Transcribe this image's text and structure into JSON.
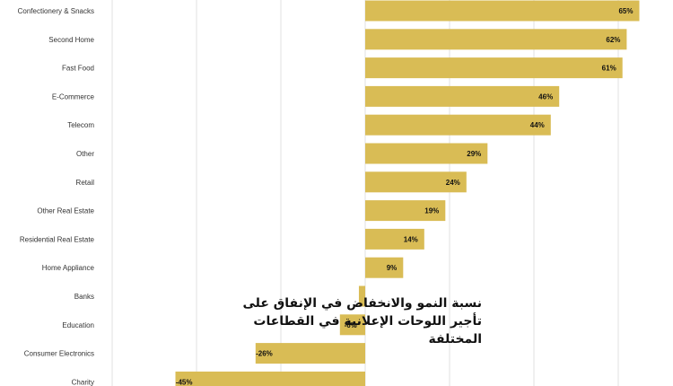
{
  "chart_data": {
    "type": "bar",
    "orientation": "horizontal",
    "title_lines": [
      "نسبة النمو والانخفاض في الإنفاق على",
      "تأجير اللوحات الإعلانية في القطاعات",
      "المختلفة"
    ],
    "categories": [
      "Confectionery & Snacks",
      "Second Home",
      "Fast Food",
      "E-Commerce",
      "Telecom",
      "Other",
      "Retail",
      "Other Real Estate",
      "Residential Real Estate",
      "Home Appliance",
      "Banks",
      "Education",
      "Consumer Electronics",
      "Charity"
    ],
    "values": [
      65,
      62,
      61,
      46,
      44,
      29,
      24,
      19,
      14,
      9,
      -1.5,
      -6,
      -26,
      -45
    ],
    "value_labels": [
      "65%",
      "62%",
      "61%",
      "46%",
      "44%",
      "29%",
      "24%",
      "19%",
      "14%",
      "9%",
      "",
      "-6%",
      "-26%",
      "-45%"
    ],
    "xlim": [
      -65,
      70
    ],
    "grid": true,
    "legend": "none",
    "bar_color": "#d9bc55"
  }
}
